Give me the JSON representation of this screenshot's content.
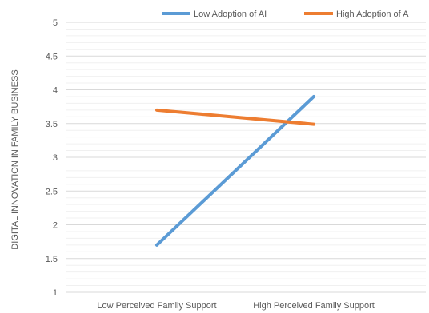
{
  "chart_data": {
    "type": "line",
    "title": "",
    "xlabel": "",
    "ylabel": "DIGITAL INNOVATION IN FAMILY BUSINESS",
    "categories": [
      "Low Perceived Family Support",
      "High Perceived Family Support"
    ],
    "ylim": [
      1,
      5
    ],
    "yticks": [
      "1",
      "1.5",
      "2",
      "2.5",
      "3",
      "3.5",
      "4",
      "4.5",
      "5"
    ],
    "grid": true,
    "legend_position": "top-right",
    "series": [
      {
        "name": "Low Adoption of AI",
        "values": [
          1.7,
          3.9
        ],
        "color": "#5b9bd5"
      },
      {
        "name": "High Adoption of A",
        "values": [
          3.7,
          3.49
        ],
        "color": "#ed7d31"
      }
    ]
  }
}
